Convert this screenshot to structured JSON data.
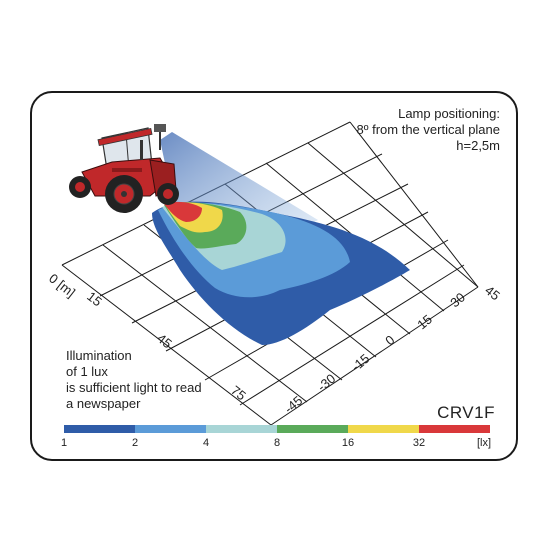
{
  "lamp_info": {
    "line1": "Lamp positioning:",
    "line2": "8º from the vertical plane",
    "line3": "h=2,5m"
  },
  "note": {
    "line1": "Illumination",
    "line2": "of 1 lux",
    "line3": "is sufficient light to read",
    "line4": "a newspaper"
  },
  "model": "CRV1F",
  "scale": {
    "labels": [
      "1",
      "2",
      "4",
      "8",
      "16",
      "32",
      "[lx]"
    ],
    "colors": [
      "#2f5ca8",
      "#5b9bd8",
      "#a8d5d6",
      "#5aaa5a",
      "#f0d84a",
      "#d9383a"
    ]
  },
  "grid": {
    "distance_labels": [
      "0 [m]",
      "15",
      "45",
      "75"
    ],
    "lateral_labels": [
      "45",
      "30",
      "15",
      "0",
      "-15",
      "-30",
      "-45"
    ]
  },
  "colors": {
    "zone_1": "#2f5ca8",
    "zone_2": "#5b9bd8",
    "zone_4": "#a8d5d6",
    "zone_8": "#5aaa5a",
    "zone_16": "#f0d84a",
    "zone_32": "#d9383a",
    "tractor": "#c0282a"
  }
}
